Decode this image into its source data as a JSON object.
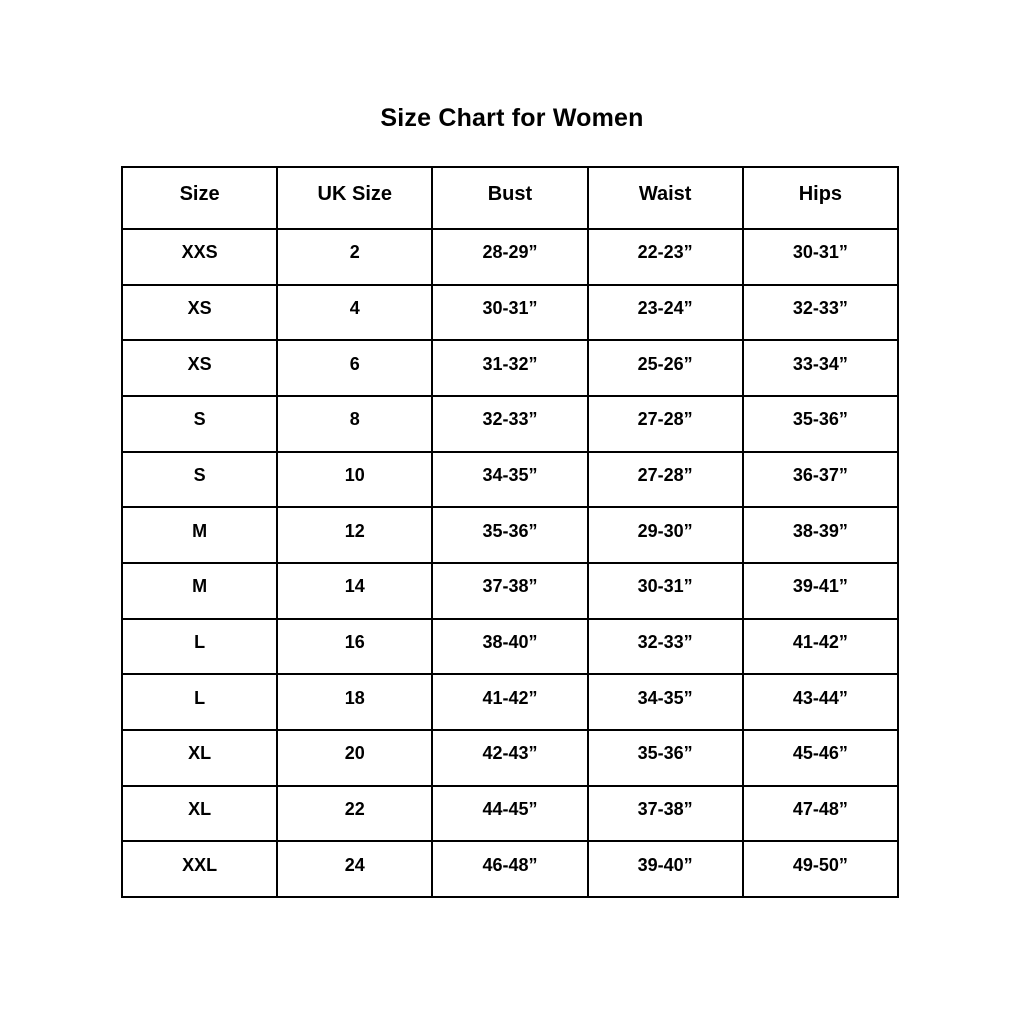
{
  "page": {
    "title": "Size Chart for Women"
  },
  "colors": {
    "background": "#ffffff",
    "text": "#000000",
    "border": "#000000"
  },
  "table": {
    "columns": [
      "Size",
      "UK Size",
      "Bust",
      "Waist",
      "Hips"
    ],
    "rows": [
      [
        "XXS",
        "2",
        "28-29”",
        "22-23”",
        "30-31”"
      ],
      [
        "XS",
        "4",
        "30-31”",
        "23-24”",
        "32-33”"
      ],
      [
        "XS",
        "6",
        "31-32”",
        "25-26”",
        "33-34”"
      ],
      [
        "S",
        "8",
        "32-33”",
        "27-28”",
        "35-36”"
      ],
      [
        "S",
        "10",
        "34-35”",
        "27-28”",
        "36-37”"
      ],
      [
        "M",
        "12",
        "35-36”",
        "29-30”",
        "38-39”"
      ],
      [
        "M",
        "14",
        "37-38”",
        "30-31”",
        "39-41”"
      ],
      [
        "L",
        "16",
        "38-40”",
        "32-33”",
        "41-42”"
      ],
      [
        "L",
        "18",
        "41-42”",
        "34-35”",
        "43-44”"
      ],
      [
        "XL",
        "20",
        "42-43”",
        "35-36”",
        "45-46”"
      ],
      [
        "XL",
        "22",
        "44-45”",
        "37-38”",
        "47-48”"
      ],
      [
        "XXL",
        "24",
        "46-48”",
        "39-40”",
        "49-50”"
      ]
    ]
  }
}
